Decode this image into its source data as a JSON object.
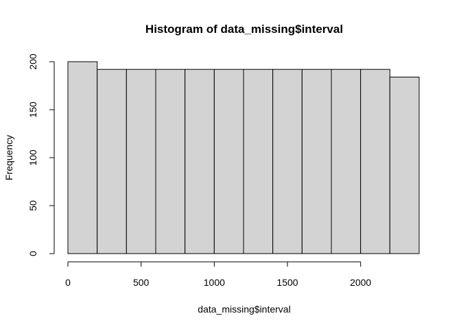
{
  "chart_data": {
    "type": "bar",
    "title": "Histogram of data_missing$interval",
    "xlabel": "data_missing$interval",
    "ylabel": "Frequency",
    "bins": [
      {
        "start": 0,
        "end": 200,
        "count": 200
      },
      {
        "start": 200,
        "end": 400,
        "count": 192
      },
      {
        "start": 400,
        "end": 600,
        "count": 192
      },
      {
        "start": 600,
        "end": 800,
        "count": 192
      },
      {
        "start": 800,
        "end": 1000,
        "count": 192
      },
      {
        "start": 1000,
        "end": 1200,
        "count": 192
      },
      {
        "start": 1200,
        "end": 1400,
        "count": 192
      },
      {
        "start": 1400,
        "end": 1600,
        "count": 192
      },
      {
        "start": 1600,
        "end": 1800,
        "count": 192
      },
      {
        "start": 1800,
        "end": 2000,
        "count": 192
      },
      {
        "start": 2000,
        "end": 2200,
        "count": 192
      },
      {
        "start": 2200,
        "end": 2400,
        "count": 184
      }
    ],
    "xticks": [
      0,
      500,
      1000,
      1500,
      2000
    ],
    "yticks": [
      0,
      50,
      100,
      150,
      200
    ],
    "xlim": [
      0,
      2400
    ],
    "ylim": [
      0,
      200
    ],
    "bar_color": "#d3d3d3",
    "grid": false
  }
}
